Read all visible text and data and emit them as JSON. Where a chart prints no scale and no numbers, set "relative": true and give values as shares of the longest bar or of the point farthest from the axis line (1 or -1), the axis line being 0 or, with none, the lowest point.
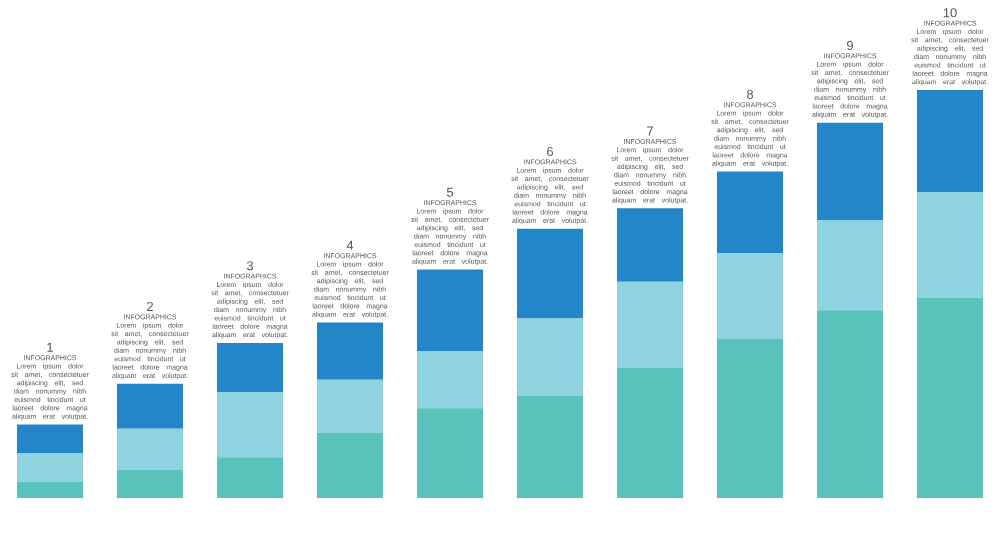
{
  "chart_data": {
    "type": "bar",
    "stacked": true,
    "relative": true,
    "categories": [
      null,
      null,
      null,
      null,
      null,
      null,
      null,
      null,
      null,
      null
    ],
    "series": [
      {
        "color": "#58c2bb",
        "values": [
          0.04,
          0.07,
          0.1,
          0.16,
          0.22,
          0.25,
          0.32,
          0.39,
          0.46,
          0.49
        ]
      },
      {
        "color": "#8ed3df",
        "values": [
          0.07,
          0.1,
          0.16,
          0.13,
          0.14,
          0.19,
          0.21,
          0.21,
          0.22,
          0.26
        ]
      },
      {
        "color": "#2286c8",
        "values": [
          0.07,
          0.11,
          0.12,
          0.14,
          0.2,
          0.22,
          0.18,
          0.2,
          0.24,
          0.25
        ]
      }
    ],
    "annotations": [
      "1",
      "INFOGRAPHICS",
      "Lorem ipsum dolor sit amet, consectetuer adipiscing elit, sed diam nonummy nibh euismod tincidunt ut laoreet dolore magna aliquam erat volutpat.",
      "2",
      "INFOGRAPHICS",
      "Lorem ipsum dolor sit amet, consectetuer adipiscing elit, sed diam nonummy nibh euismod tincidunt ut laoreet dolore magna aliquam erat volutpat.",
      "3",
      "INFOGRAPHICS",
      "Lorem ipsum dolor sit amet, consectetuer adipiscing elit, sed diam nonummy nibh euismod tincidunt ut laoreet dolore magna aliquam erat volutpat.",
      "4",
      "INFOGRAPHICS",
      "Lorem ipsum dolor sit amet, consectetuer adipiscing elit, sed diam nonummy nibh euismod tincidunt ut laoreet dolore magna aliquam erat volutpat.",
      "5",
      "INFOGRAPHICS",
      "Lorem ipsum dolor sit amet, consectetuer adipiscing elit, sed diam nonummy nibh euismod tincidunt ut laoreet dolore magna aliquam erat volutpat.",
      "6",
      "INFOGRAPHICS",
      "Lorem ipsum dolor sit amet, consectetuer adipiscing elit, sed diam nonummy nibh euismod tincidunt ut laoreet dolore magna aliquam erat volutpat.",
      "7",
      "INFOGRAPHICS",
      "Lorem ipsum dolor sit amet, consectetuer adipiscing elit, sed diam nonummy nibh euismod tincidunt ut laoreet dolore magna aliquam erat volutpat.",
      "8",
      "INFOGRAPHICS",
      "Lorem ipsum dolor sit amet, consectetuer adipiscing elit, sed diam nonummy nibh euismod tincidunt ut laoreet dolore magna aliquam erat volutpat.",
      "9",
      "INFOGRAPHICS",
      "Lorem ipsum dolor sit amet, consectetuer adipiscing elit, sed diam nonummy nibh euismod tincidunt ut laoreet dolore magna aliquam erat volutpat.",
      "10",
      "INFOGRAPHICS",
      "Lorem ipsum dolor sit amet, consectetuer adipiscing elit, sed diam nonummy nibh euismod tincidunt ut laoreet dolore magna aliquam erat volutpat."
    ]
  }
}
